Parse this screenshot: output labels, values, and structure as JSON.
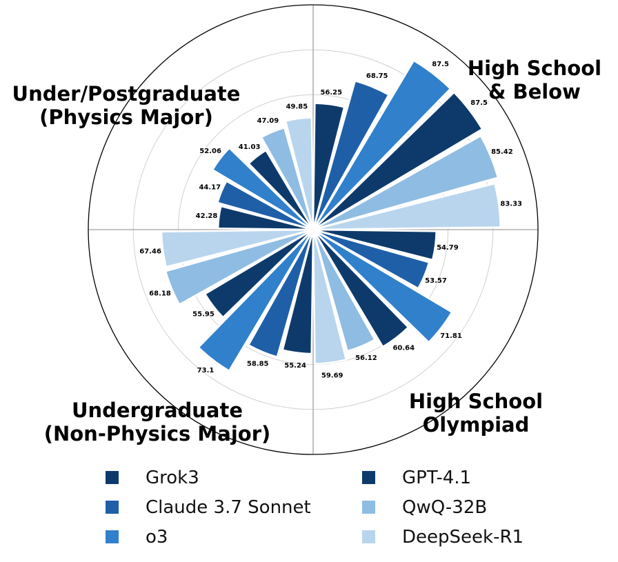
{
  "chart_data": {
    "type": "polar-bar",
    "title": "",
    "colors": {
      "Grok3": "#0e3a6b",
      "Claude 3.7 Sonnet": "#1f5fa8",
      "o3": "#3080cb",
      "GPT-4.1": "#0e3a6b",
      "QwQ-32B": "#8fbce2",
      "DeepSeek-R1": "#b9d5ee"
    },
    "series_order": [
      "Grok3",
      "Claude 3.7 Sonnet",
      "o3",
      "GPT-4.1",
      "QwQ-32B",
      "DeepSeek-R1"
    ],
    "categories": [
      {
        "label": [
          "High School",
          "& Below"
        ],
        "values": [
          56.25,
          68.75,
          87.5,
          87.5,
          85.42,
          83.33
        ]
      },
      {
        "label": [
          "High School",
          "Olympiad"
        ],
        "values": [
          54.79,
          53.57,
          71.81,
          60.64,
          56.12,
          59.69
        ]
      },
      {
        "label": [
          "Undergraduate",
          "(Non-Physics Major)"
        ],
        "values": [
          55.24,
          58.85,
          73.1,
          55.95,
          68.18,
          67.46
        ]
      },
      {
        "label": [
          "Under/Postgraduate",
          "(Physics Major)"
        ],
        "values": [
          42.28,
          44.17,
          52.06,
          41.03,
          47.09,
          49.85
        ]
      }
    ],
    "rmax": 100,
    "grid_rings": [
      20,
      40,
      60,
      80
    ],
    "legend": {
      "placement": "bottom",
      "columns": [
        [
          "Grok3",
          "Claude 3.7 Sonnet",
          "o3"
        ],
        [
          "GPT-4.1",
          "QwQ-32B",
          "DeepSeek-R1"
        ]
      ]
    }
  }
}
